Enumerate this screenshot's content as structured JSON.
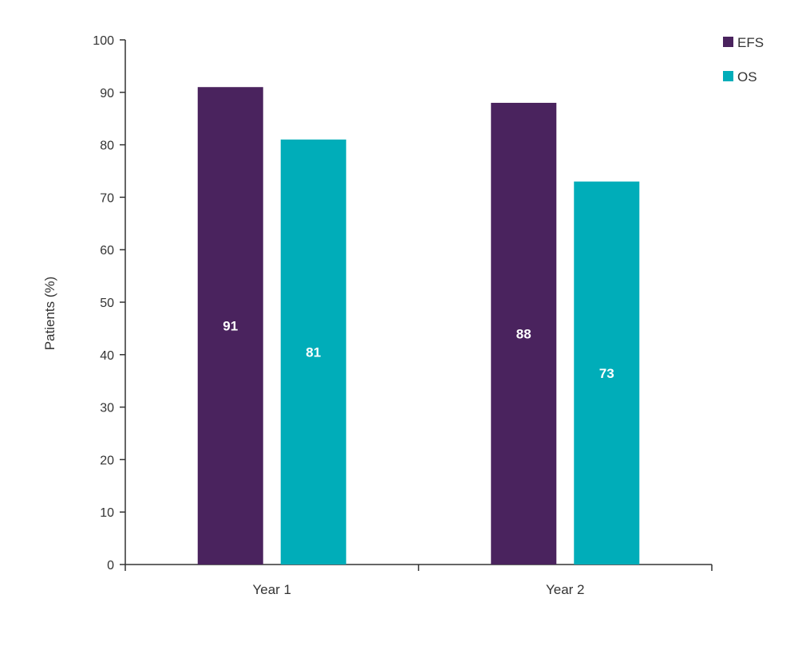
{
  "chart_data": {
    "type": "bar",
    "title": "",
    "xlabel": "",
    "ylabel": "Patients (%)",
    "ylim": [
      0,
      100
    ],
    "yticks": [
      0,
      10,
      20,
      30,
      40,
      50,
      60,
      70,
      80,
      90,
      100
    ],
    "categories": [
      "Year 1",
      "Year 2"
    ],
    "series": [
      {
        "name": "EFS",
        "color": "#4a235e",
        "values": [
          91,
          88
        ]
      },
      {
        "name": "OS",
        "color": "#00adb9",
        "values": [
          81,
          73
        ]
      }
    ],
    "legend": "top-right",
    "grid": false
  }
}
